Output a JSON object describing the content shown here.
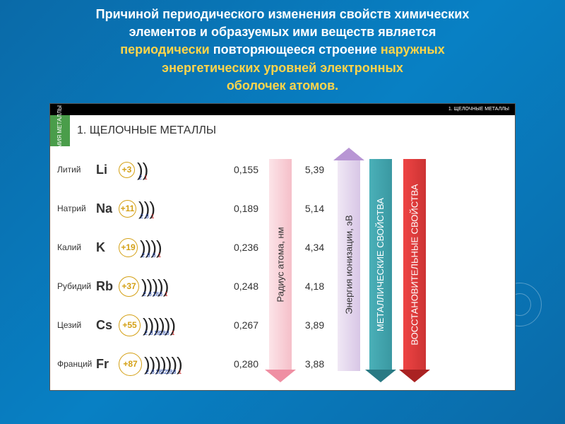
{
  "header": {
    "line1_normal": "Причиной периодического изменения свойств химических",
    "line2_normal": "элементов и образуемых ими веществ является",
    "line3a_highlight": "периодически",
    "line3b_normal": " повторяющееся строение ",
    "line3c_highlight": "наружных",
    "line4_highlight": "энергетических уровней электронных",
    "line5_highlight": "оболочек атомов."
  },
  "tabbar": {
    "text": "1. ЩЕЛОЧНЫЕ МЕТАЛЛЫ"
  },
  "section": {
    "tab": "ХИМИЯ МЕТАЛЛЫ",
    "title": "1. ЩЕЛОЧНЫЕ МЕТАЛЛЫ"
  },
  "elements": [
    {
      "rus": "Литий",
      "sym": "Li",
      "z": "+3",
      "nucSize": 23,
      "shells": [
        "2",
        "1"
      ]
    },
    {
      "rus": "Натрий",
      "sym": "Na",
      "z": "+11",
      "nucSize": 25,
      "shells": [
        "2",
        "8",
        "1"
      ]
    },
    {
      "rus": "Калий",
      "sym": "K",
      "z": "+19",
      "nucSize": 27,
      "shells": [
        "2",
        "8",
        "8",
        "1"
      ]
    },
    {
      "rus": "Рубидий",
      "sym": "Rb",
      "z": "+37",
      "nucSize": 29,
      "shells": [
        "2",
        "8",
        "18",
        "8",
        "1"
      ]
    },
    {
      "rus": "Цезий",
      "sym": "Cs",
      "z": "+55",
      "nucSize": 31,
      "shells": [
        "2",
        "8",
        "18",
        "18",
        "8",
        "1"
      ]
    },
    {
      "rus": "Франций",
      "sym": "Fr",
      "z": "+87",
      "nucSize": 33,
      "shells": [
        "2",
        "8",
        "18",
        "32",
        "18",
        "8",
        "1"
      ]
    }
  ],
  "columns": {
    "radius": {
      "label": "Радиус атома, нм",
      "dir": "down",
      "cls": "a-pink",
      "values": [
        "0,155",
        "0,189",
        "0,236",
        "0,248",
        "0,267",
        "0,280"
      ]
    },
    "ionization": {
      "label": "Энергия ионизации, эВ",
      "dir": "up",
      "cls": "a-purple",
      "values": [
        "5,39",
        "5,14",
        "4,34",
        "4,18",
        "3,89",
        "3,88"
      ]
    },
    "metallic": {
      "label": "МЕТАЛЛИЧЕСКИЕ СВОЙСТВА",
      "dir": "down",
      "cls": "a-teal",
      "white": true
    },
    "reducing": {
      "label": "ВОССТАНОВИТЕЛЬНЫЕ СВОЙСТВА",
      "dir": "down",
      "cls": "a-red",
      "white": true
    }
  },
  "colors": {
    "bg_grad_start": "#0a6aa8",
    "bg_grad_end": "#0880c4",
    "highlight": "#ffd54a",
    "header_text": "#ffffff",
    "nucleus": "#d4a015",
    "shell_num_last": "#c41e1e",
    "shell_num": "#2a4aa8"
  }
}
